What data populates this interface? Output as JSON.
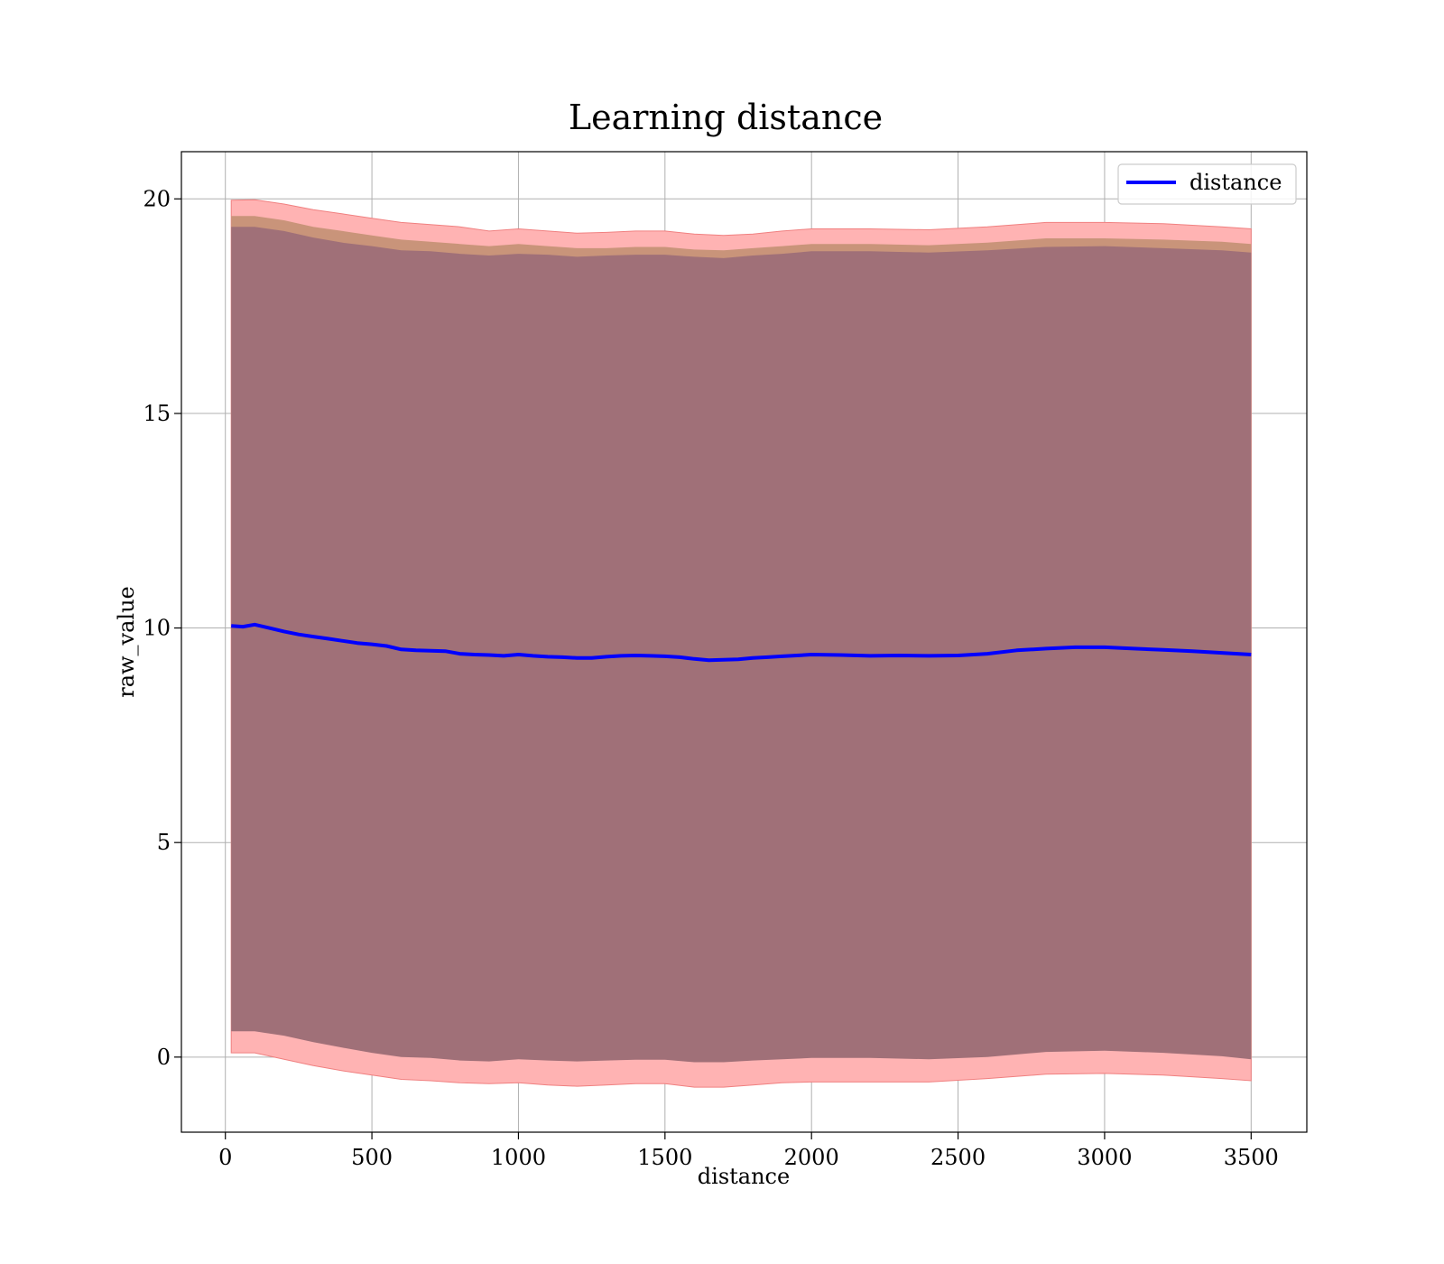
{
  "chart_data": {
    "type": "line",
    "title": "Learning distance",
    "xlabel": "distance",
    "ylabel": "raw_value",
    "xlim": [
      -150,
      3690
    ],
    "ylim": [
      -1.75,
      21.1
    ],
    "xticks": [
      0,
      500,
      1000,
      1500,
      2000,
      2500,
      3000,
      3500
    ],
    "yticks": [
      0,
      5,
      10,
      15,
      20
    ],
    "grid": true,
    "legend": {
      "position": "top-right",
      "entries": [
        "distance"
      ]
    },
    "colors": {
      "line": "#0000ff",
      "outer_band": "#ffb3b3",
      "outer_band_edge": "#f08080",
      "middle_band": "#c9947a",
      "inner_band": "#a07078",
      "grid": "#b0b0b0"
    },
    "series": [
      {
        "name": "distance",
        "x": [
          20,
          60,
          100,
          150,
          200,
          250,
          300,
          350,
          400,
          450,
          500,
          550,
          600,
          650,
          700,
          750,
          800,
          850,
          900,
          950,
          1000,
          1050,
          1100,
          1150,
          1200,
          1250,
          1300,
          1350,
          1400,
          1450,
          1500,
          1550,
          1600,
          1650,
          1700,
          1750,
          1800,
          1850,
          1900,
          1950,
          2000,
          2100,
          2200,
          2300,
          2400,
          2500,
          2600,
          2700,
          2800,
          2900,
          3000,
          3100,
          3200,
          3300,
          3400,
          3500
        ],
        "y": [
          10.05,
          10.03,
          10.08,
          10.0,
          9.92,
          9.85,
          9.8,
          9.75,
          9.7,
          9.65,
          9.62,
          9.58,
          9.5,
          9.48,
          9.47,
          9.46,
          9.4,
          9.38,
          9.37,
          9.35,
          9.38,
          9.35,
          9.33,
          9.32,
          9.3,
          9.3,
          9.33,
          9.35,
          9.36,
          9.35,
          9.34,
          9.32,
          9.28,
          9.25,
          9.26,
          9.27,
          9.3,
          9.32,
          9.34,
          9.36,
          9.38,
          9.37,
          9.35,
          9.36,
          9.35,
          9.36,
          9.4,
          9.48,
          9.52,
          9.55,
          9.55,
          9.52,
          9.49,
          9.46,
          9.42,
          9.38
        ]
      }
    ],
    "bands": {
      "x": [
        20,
        100,
        200,
        300,
        400,
        500,
        600,
        700,
        800,
        900,
        1000,
        1100,
        1200,
        1300,
        1400,
        1500,
        1600,
        1700,
        1800,
        1900,
        2000,
        2200,
        2400,
        2600,
        2800,
        3000,
        3200,
        3400,
        3500
      ],
      "outer_upper": [
        19.97,
        19.98,
        19.88,
        19.75,
        19.65,
        19.55,
        19.45,
        19.4,
        19.35,
        19.25,
        19.3,
        19.25,
        19.2,
        19.22,
        19.25,
        19.25,
        19.18,
        19.15,
        19.18,
        19.25,
        19.3,
        19.3,
        19.28,
        19.35,
        19.45,
        19.45,
        19.42,
        19.35,
        19.3
      ],
      "middle_upper": [
        19.6,
        19.6,
        19.5,
        19.35,
        19.25,
        19.15,
        19.05,
        19.0,
        18.95,
        18.9,
        18.95,
        18.9,
        18.85,
        18.85,
        18.88,
        18.88,
        18.82,
        18.8,
        18.85,
        18.9,
        18.95,
        18.95,
        18.92,
        18.98,
        19.08,
        19.08,
        19.05,
        19.0,
        18.95
      ],
      "inner_upper": [
        19.35,
        19.35,
        19.25,
        19.1,
        18.98,
        18.9,
        18.8,
        18.78,
        18.72,
        18.68,
        18.72,
        18.7,
        18.65,
        18.68,
        18.7,
        18.7,
        18.65,
        18.62,
        18.68,
        18.72,
        18.78,
        18.78,
        18.75,
        18.8,
        18.88,
        18.9,
        18.85,
        18.8,
        18.75
      ],
      "inner_lower": [
        0.6,
        0.6,
        0.5,
        0.35,
        0.22,
        0.1,
        0.0,
        -0.02,
        -0.08,
        -0.1,
        -0.05,
        -0.08,
        -0.1,
        -0.08,
        -0.06,
        -0.06,
        -0.12,
        -0.12,
        -0.08,
        -0.05,
        -0.02,
        -0.02,
        -0.05,
        0.0,
        0.12,
        0.15,
        0.1,
        0.02,
        -0.05
      ],
      "middle_lower": [
        0.75,
        0.72,
        0.62,
        0.48,
        0.35,
        0.22,
        0.12,
        0.05,
        -0.02,
        -0.05,
        0.0,
        -0.05,
        -0.05,
        -0.02,
        -0.02,
        -0.02,
        -0.08,
        -0.08,
        -0.05,
        -0.02,
        0.02,
        0.02,
        0.0,
        0.05,
        0.2,
        0.2,
        0.15,
        0.08,
        0.0
      ],
      "outer_lower": [
        0.1,
        0.1,
        -0.05,
        -0.2,
        -0.32,
        -0.42,
        -0.52,
        -0.55,
        -0.6,
        -0.62,
        -0.6,
        -0.65,
        -0.68,
        -0.65,
        -0.62,
        -0.62,
        -0.7,
        -0.7,
        -0.65,
        -0.6,
        -0.58,
        -0.58,
        -0.58,
        -0.5,
        -0.4,
        -0.38,
        -0.42,
        -0.5,
        -0.55
      ]
    }
  }
}
